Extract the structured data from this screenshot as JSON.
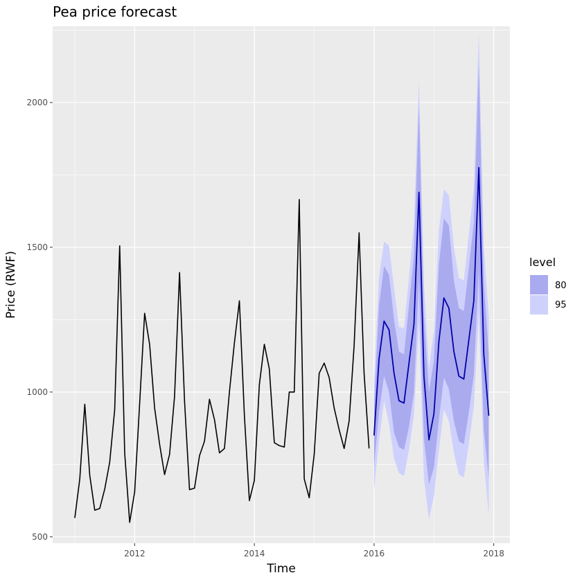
{
  "chart_data": {
    "type": "line",
    "title": "Pea price forecast",
    "xlabel": "Time",
    "ylabel": "Price (RWF)",
    "xlim": [
      2010.63,
      2018.27
    ],
    "ylim": [
      478,
      2263
    ],
    "x_ticks": [
      2012,
      2014,
      2016,
      2018
    ],
    "x_tick_labels": [
      "2012",
      "2014",
      "2016",
      "2018"
    ],
    "y_ticks": [
      500,
      1000,
      1500,
      2000
    ],
    "y_tick_labels": [
      "500",
      "1000",
      "1500",
      "2000"
    ],
    "historical": {
      "start": 2011.0,
      "step": 0.08333,
      "values": [
        565,
        700,
        958,
        712,
        592,
        598,
        665,
        758,
        940,
        1505,
        790,
        550,
        655,
        960,
        1272,
        1165,
        945,
        820,
        715,
        785,
        985,
        1413,
        970,
        663,
        668,
        780,
        830,
        975,
        905,
        790,
        805,
        1000,
        1170,
        1315,
        920,
        625,
        695,
        1025,
        1165,
        1080,
        825,
        815,
        810,
        1000,
        1000,
        1665,
        700,
        635,
        785,
        1065,
        1100,
        1050,
        945,
        870,
        805,
        900,
        1160,
        1550,
        1065,
        805
      ]
    },
    "forecast": {
      "start": 2016.0,
      "step": 0.08333,
      "mean": [
        850,
        1115,
        1245,
        1215,
        1065,
        970,
        962,
        1100,
        1235,
        1690,
        1055,
        835,
        925,
        1175,
        1325,
        1290,
        1140,
        1055,
        1045,
        1180,
        1315,
        1775,
        1130,
        918
      ],
      "lo80": [
        745,
        930,
        1055,
        1000,
        860,
        810,
        800,
        880,
        1000,
        1390,
        840,
        680,
        740,
        905,
        1050,
        1010,
        900,
        830,
        820,
        930,
        1060,
        1420,
        870,
        700
      ],
      "hi80": [
        960,
        1300,
        1435,
        1405,
        1250,
        1140,
        1130,
        1300,
        1470,
        1990,
        1265,
        1000,
        1110,
        1440,
        1600,
        1575,
        1385,
        1290,
        1280,
        1430,
        1585,
        2130,
        1380,
        1130
      ],
      "lo95": [
        665,
        830,
        970,
        890,
        770,
        720,
        710,
        800,
        920,
        1240,
        700,
        560,
        640,
        800,
        940,
        900,
        790,
        715,
        705,
        820,
        950,
        1270,
        760,
        575
      ],
      "hi95": [
        1045,
        1400,
        1520,
        1505,
        1360,
        1225,
        1220,
        1395,
        1590,
        2075,
        1375,
        1085,
        1210,
        1560,
        1700,
        1680,
        1500,
        1395,
        1385,
        1545,
        1705,
        2240,
        1500,
        1260
      ]
    },
    "legend": {
      "title": "level",
      "position": "right",
      "entries": [
        {
          "label": "80",
          "color": "#aaaaee"
        },
        {
          "label": "95",
          "color": "#cfd1fd"
        }
      ]
    },
    "colors": {
      "panel": "#ebebeb",
      "grid": "#ffffff",
      "historical_line": "#000000",
      "forecast_line": "#0000aa",
      "band80": "#aaaaee",
      "band95": "#cfd1fd"
    }
  }
}
